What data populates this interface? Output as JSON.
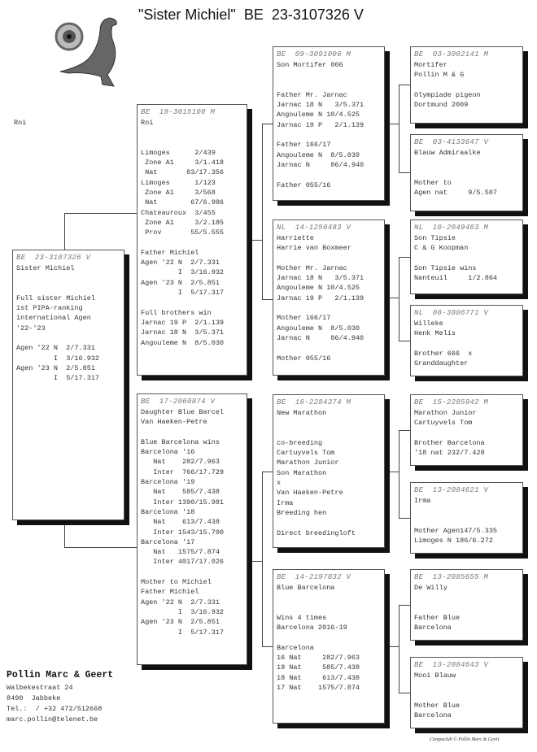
{
  "header": {
    "name": "\"Sister Michiel\"",
    "ring": "BE  23-3107326 V"
  },
  "left_label": "Roi",
  "boxes": [
    {
      "id": "subject",
      "ring": "BE  23-3107326 V",
      "lines": [
        "Sister Michiel",
        "",
        "",
        "Full sister Michiel",
        "1st PIPA-ranking",
        "international Agen",
        "'22-'23",
        "",
        "Agen '22 N  2/7.331",
        "         I  3/16.932",
        "Agen '23 N  2/5.851",
        "         I  5/17.317"
      ]
    },
    {
      "id": "father",
      "ring": "BE  19-3015100 M",
      "lines": [
        "Roi",
        "",
        "",
        "Limoges      2/439",
        " Zone A1     3/1.418",
        " Nat       83/17.356",
        "Limoges      1/123",
        " Zone A1     3/568",
        " Nat        67/6.986",
        "Chateauroux  3/455",
        " Zone A1     3/2.185",
        " Prov       55/5.555",
        "",
        "Father Michiel",
        "Agen '22 N  2/7.331",
        "         I  3/16.932",
        "Agen '23 N  2/5.851",
        "         I  5/17.317",
        "",
        "Full brothers win",
        "Jarnac 19 P  2/1.139",
        "Jarnac 18 N  3/5.371",
        "Angouleme N  8/5.030"
      ]
    },
    {
      "id": "mother",
      "ring": "BE  17-2060874 V",
      "lines": [
        "Daughter Blue Barcel",
        "Van Haeken-Petre",
        "",
        "Blue Barcelona wins",
        "Barcelona '16",
        "   Nat    282/7.963",
        "   Inter  766/17.729",
        "Barcelona '19",
        "   Nat    585/7.438",
        "   Inter 1390/15.981",
        "Barcelona '18",
        "   Nat    613/7.438",
        "   Inter 1543/15.700",
        "Barcelona '17",
        "   Nat   1575/7.874",
        "   Inter 4017/17.026",
        "",
        "Mother to Michiel",
        "Father Michiel",
        "Agen '22 N  2/7.331",
        "         I  3/16.932",
        "Agen '23 N  2/5.851",
        "         I  5/17.317"
      ]
    },
    {
      "id": "ff",
      "ring": "BE  09-3091006 M",
      "lines": [
        "Son Mortifer 006",
        "",
        "",
        "Father Mr. Jarnac",
        "Jarnac 18 N   3/5.371",
        "Angouleme N 10/4.525",
        "Jarnac 19 P   2/1.139",
        "",
        "Father 166/17",
        "Angouleme N  8/5.030",
        "Jarnac N     86/4.940",
        "",
        "Father 055/16"
      ]
    },
    {
      "id": "fm",
      "ring": "NL  14-1250483 V",
      "lines": [
        "Harriette",
        "Harrie van Boxmeer",
        "",
        "Mother Mr. Jarnac",
        "Jarnac 18 N   3/5.371",
        "Angouleme N 10/4.525",
        "Jarnac 19 P   2/1.139",
        "",
        "Mother 166/17",
        "Angouleme N  8/5.030",
        "Jarnac N     86/4.940",
        "",
        "Mother 055/16"
      ]
    },
    {
      "id": "mf",
      "ring": "BE  16-2284374 M",
      "lines": [
        "New Marathon",
        "",
        "",
        "co-breeding",
        "Cartuyvels Tom",
        "Marathon Junior",
        "Son Marathon",
        "x",
        "Van Haeken-Petre",
        "Irma",
        "Breeding hen",
        "",
        "Direct breedingloft"
      ]
    },
    {
      "id": "mm",
      "ring": "BE  14-2197832 V",
      "lines": [
        "Blue Barcelona",
        "",
        "",
        "Wins 4 times",
        "Barcelona 2016-19",
        "",
        "Barcelona",
        "16 Nat     282/7.963",
        "19 Nat     585/7.438",
        "18 Nat     613/7.438",
        "17 Nat    1575/7.874"
      ]
    },
    {
      "id": "fff",
      "ring": "BE  03-3002141 M",
      "lines": [
        "Mortifer",
        "Pollin M & G",
        "",
        "Olympiade pigeon",
        "Dortmund 2009"
      ]
    },
    {
      "id": "ffm",
      "ring": "BE  03-4133647 V",
      "lines": [
        "Blauw Admiraalke",
        "",
        "",
        "Mother to",
        "Agen nat     9/5.507"
      ]
    },
    {
      "id": "fmf",
      "ring": "NL  10-2049463 M",
      "lines": [
        "Son Tipsie",
        "C & G Koopman",
        "",
        "Son Tipsie wins",
        "Nanteuil     1/2.864"
      ]
    },
    {
      "id": "fmm",
      "ring": "NL  08-3806771 V",
      "lines": [
        "Willeke",
        "Henk Melis",
        "",
        "Brother 666  x",
        "Granddaughter"
      ]
    },
    {
      "id": "mff",
      "ring": "BE  15-2285942 M",
      "lines": [
        "Marathon Junior",
        "Cartuyvels Tom",
        "",
        "Brother Barcelona",
        "'18 nat 232/7.428"
      ]
    },
    {
      "id": "mfm",
      "ring": "BE  13-2084621 V",
      "lines": [
        "Irma",
        "",
        "",
        "Mother Agen147/5.335",
        "Limoges N 186/6.272"
      ]
    },
    {
      "id": "mmf",
      "ring": "BE  13-2085655 M",
      "lines": [
        "De Willy",
        "",
        "",
        "Father Blue",
        "Barcelona"
      ]
    },
    {
      "id": "mmm",
      "ring": "BE  13-2084643 V",
      "lines": [
        "Mooi Blauw",
        "",
        "",
        "Mother Blue",
        "Barcelona"
      ]
    }
  ],
  "owner": {
    "name": "Pollin Marc & Geert",
    "lines": [
      "Walbekestraat 24",
      "8490  Jabbeke",
      "Tel.:  / +32 472/512668",
      "marc.pollin@telenet.be"
    ]
  },
  "credit": "Compuclub © Pollin Marc & Geert"
}
